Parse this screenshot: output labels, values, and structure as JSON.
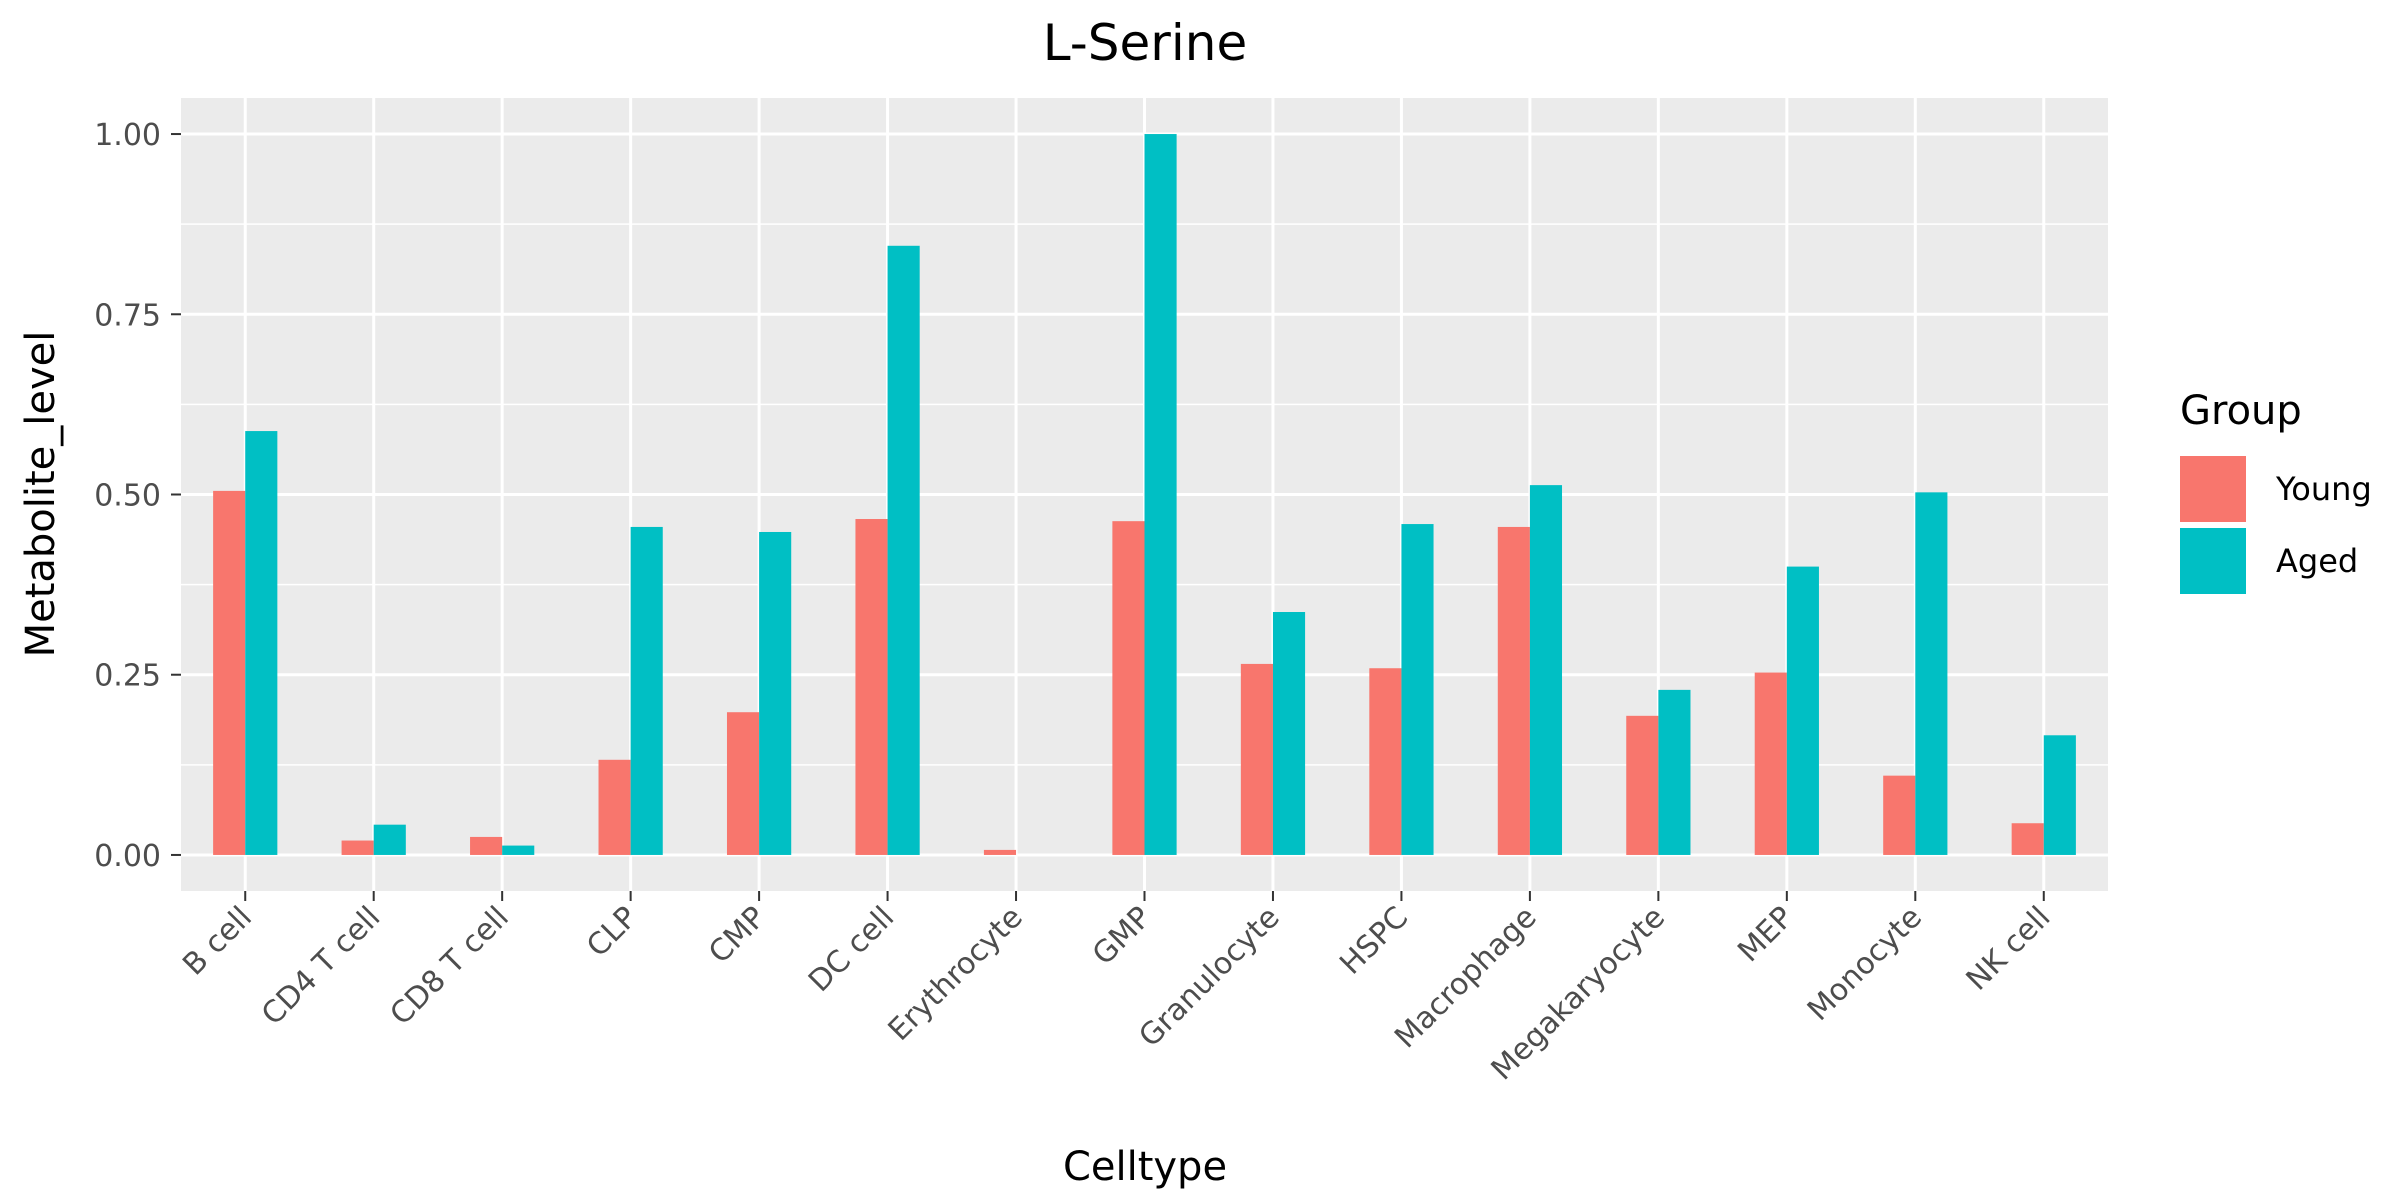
{
  "chart_data": {
    "type": "bar",
    "title": "L-Serine",
    "xlabel": "Celltype",
    "ylabel": "Metabolite_level",
    "ylim": [
      -0.05,
      1.05
    ],
    "yticks": [
      0,
      0.25,
      0.5,
      0.75,
      1
    ],
    "ytick_labels": [
      "0.00",
      "0.25",
      "0.50",
      "0.75",
      "1.00"
    ],
    "grid": true,
    "legend": {
      "title": "Group",
      "placement": "right"
    },
    "categories": [
      "B cell",
      "CD4 T cell",
      "CD8 T cell",
      "CLP",
      "CMP",
      "DC cell",
      "Erythrocyte",
      "GMP",
      "Granulocyte",
      "HSPC",
      "Macrophage",
      "Megakaryocyte",
      "MEP",
      "Monocyte",
      "NK cell"
    ],
    "series": [
      {
        "name": "Young",
        "color": "#F8766D",
        "values": [
          0.505,
          0.02,
          0.025,
          0.132,
          0.198,
          0.466,
          0.007,
          0.463,
          0.265,
          0.259,
          0.455,
          0.193,
          0.253,
          0.11,
          0.044
        ]
      },
      {
        "name": "Aged",
        "color": "#00BFC4",
        "values": [
          0.588,
          0.042,
          0.013,
          0.455,
          0.448,
          0.845,
          0.0,
          1.0,
          0.337,
          0.459,
          0.513,
          0.229,
          0.4,
          0.503,
          0.166
        ]
      }
    ]
  }
}
